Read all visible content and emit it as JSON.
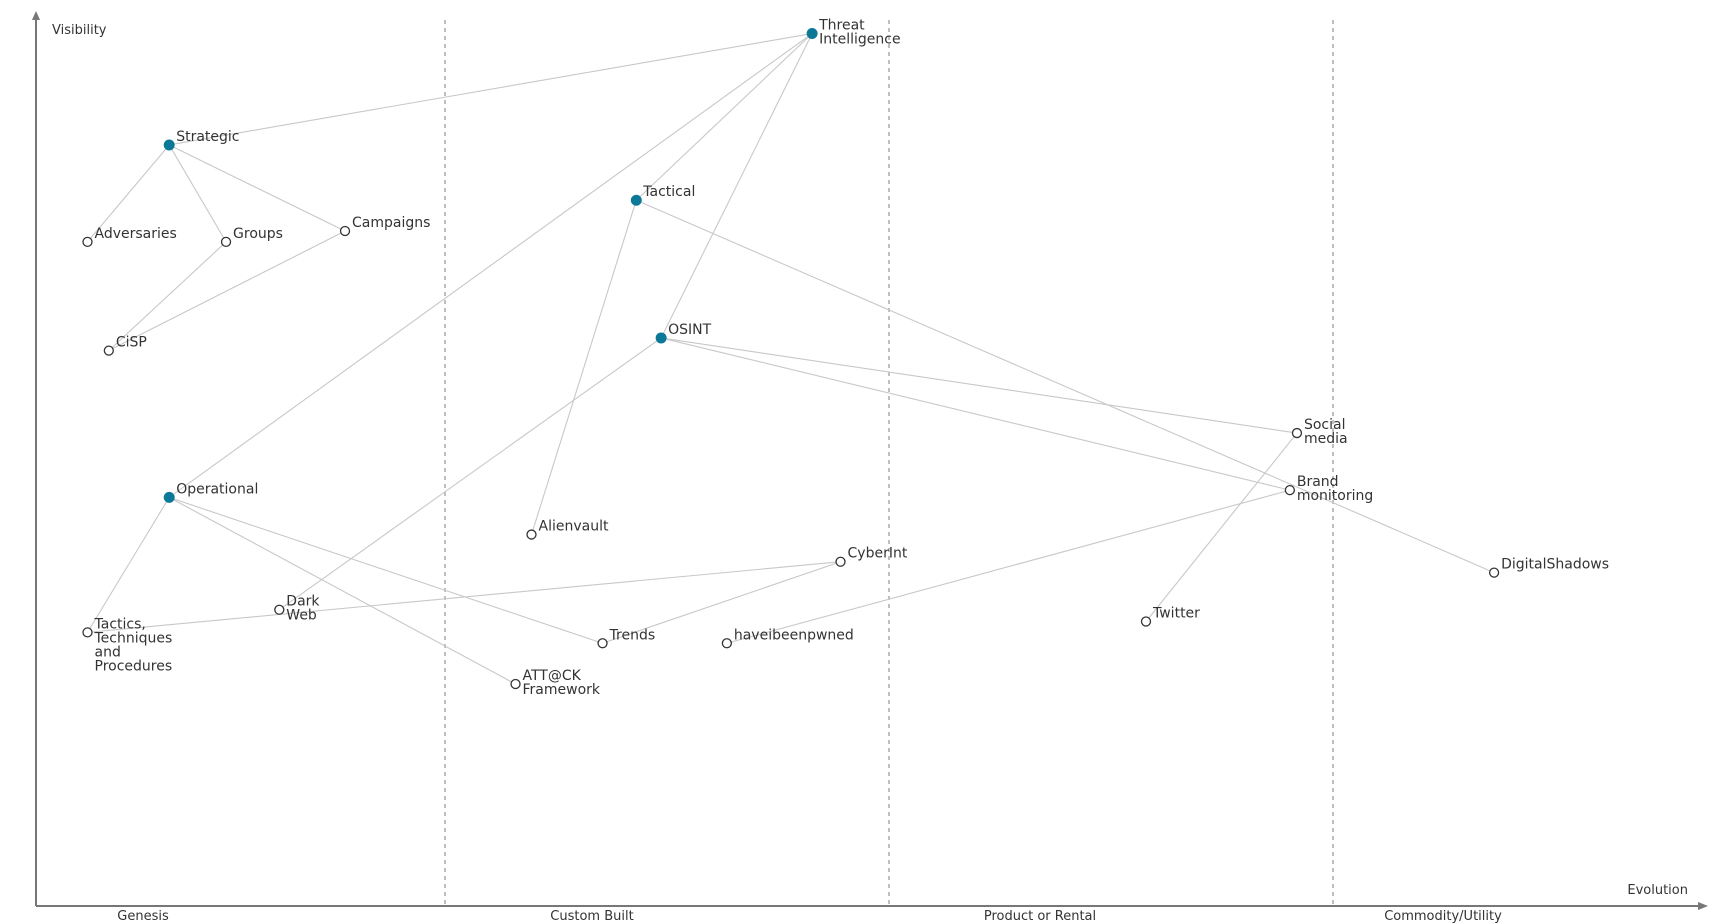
{
  "axes": {
    "y_label": "Visibility",
    "x_label": "Evolution",
    "stages": [
      "Genesis",
      "Custom Built",
      "Product or Rental",
      "Commodity/Utility"
    ]
  },
  "colors": {
    "anchor": "#0a7896",
    "component": "#ffffff",
    "link": "#c8c8c8"
  },
  "nodes": [
    {
      "id": "threat-intelligence",
      "label": [
        "Threat",
        "Intelligence"
      ],
      "kind": "anchor",
      "evolution": 0.437,
      "visibility": 0.963
    },
    {
      "id": "strategic",
      "label": [
        "Strategic"
      ],
      "kind": "anchor",
      "evolution": 0.075,
      "visibility": 0.84
    },
    {
      "id": "tactical",
      "label": [
        "Tactical"
      ],
      "kind": "anchor",
      "evolution": 0.338,
      "visibility": 0.779
    },
    {
      "id": "osint",
      "label": [
        "OSINT"
      ],
      "kind": "anchor",
      "evolution": 0.352,
      "visibility": 0.627
    },
    {
      "id": "operational",
      "label": [
        "Operational"
      ],
      "kind": "anchor",
      "evolution": 0.075,
      "visibility": 0.451
    },
    {
      "id": "adversaries",
      "label": [
        "Adversaries"
      ],
      "kind": "component",
      "evolution": 0.029,
      "visibility": 0.733
    },
    {
      "id": "groups",
      "label": [
        "Groups"
      ],
      "kind": "component",
      "evolution": 0.107,
      "visibility": 0.733
    },
    {
      "id": "campaigns",
      "label": [
        "Campaigns"
      ],
      "kind": "component",
      "evolution": 0.174,
      "visibility": 0.745
    },
    {
      "id": "cisp",
      "label": [
        "CiSP"
      ],
      "kind": "component",
      "evolution": 0.041,
      "visibility": 0.613
    },
    {
      "id": "alienvault",
      "label": [
        "Alienvault"
      ],
      "kind": "component",
      "evolution": 0.279,
      "visibility": 0.41
    },
    {
      "id": "cyberint",
      "label": [
        "CyberInt"
      ],
      "kind": "component",
      "evolution": 0.453,
      "visibility": 0.38
    },
    {
      "id": "dark-web",
      "label": [
        "Dark",
        "Web"
      ],
      "kind": "component",
      "evolution": 0.137,
      "visibility": 0.327
    },
    {
      "id": "ttp",
      "label": [
        "Tactics,",
        "Techniques",
        "and",
        "Procedures"
      ],
      "kind": "component",
      "evolution": 0.029,
      "visibility": 0.302
    },
    {
      "id": "trends",
      "label": [
        "Trends"
      ],
      "kind": "component",
      "evolution": 0.319,
      "visibility": 0.29
    },
    {
      "id": "haveibeenpwned",
      "label": [
        "haveibeenpwned"
      ],
      "kind": "component",
      "evolution": 0.389,
      "visibility": 0.29
    },
    {
      "id": "attck-framework",
      "label": [
        "ATT@CK",
        "Framework"
      ],
      "kind": "component",
      "evolution": 0.27,
      "visibility": 0.245
    },
    {
      "id": "social-media",
      "label": [
        "Social",
        "media"
      ],
      "kind": "component",
      "evolution": 0.71,
      "visibility": 0.522
    },
    {
      "id": "brand-monitoring",
      "label": [
        "Brand",
        "monitoring"
      ],
      "kind": "component",
      "evolution": 0.706,
      "visibility": 0.459
    },
    {
      "id": "digitalshadows",
      "label": [
        "DigitalShadows"
      ],
      "kind": "component",
      "evolution": 0.821,
      "visibility": 0.368
    },
    {
      "id": "twitter",
      "label": [
        "Twitter"
      ],
      "kind": "component",
      "evolution": 0.625,
      "visibility": 0.314
    }
  ],
  "links": [
    [
      "strategic",
      "threat-intelligence"
    ],
    [
      "tactical",
      "threat-intelligence"
    ],
    [
      "osint",
      "threat-intelligence"
    ],
    [
      "operational",
      "threat-intelligence"
    ],
    [
      "strategic",
      "adversaries"
    ],
    [
      "strategic",
      "groups"
    ],
    [
      "strategic",
      "campaigns"
    ],
    [
      "groups",
      "cisp"
    ],
    [
      "campaigns",
      "cisp"
    ],
    [
      "tactical",
      "alienvault"
    ],
    [
      "tactical",
      "digitalshadows"
    ],
    [
      "osint",
      "social-media"
    ],
    [
      "osint",
      "brand-monitoring"
    ],
    [
      "osint",
      "dark-web"
    ],
    [
      "operational",
      "ttp"
    ],
    [
      "operational",
      "trends"
    ],
    [
      "operational",
      "attck-framework"
    ],
    [
      "ttp",
      "cyberint"
    ],
    [
      "trends",
      "cyberint"
    ],
    [
      "haveibeenpwned",
      "brand-monitoring"
    ],
    [
      "social-media",
      "twitter"
    ]
  ]
}
